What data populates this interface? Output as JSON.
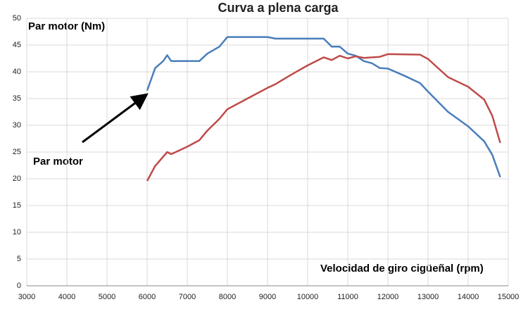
{
  "chart_data": {
    "type": "line",
    "title": "Curva a plena carga",
    "y_label": "Par motor (Nm)",
    "x_label": "Velocidad de giro cigüeñal (rpm)",
    "annotation": "Par motor",
    "series": [
      {
        "color": "#4a7ebb",
        "x": [
          6000,
          6200,
          6400,
          6500,
          6600,
          7300,
          7500,
          7800,
          8000,
          9000,
          9200,
          10400,
          10600,
          10800,
          11000,
          11200,
          11400,
          11600,
          11800,
          12000,
          12400,
          12800,
          13000,
          13500,
          14000,
          14400,
          14600,
          14800
        ],
        "values": [
          36.5,
          40.7,
          42,
          43.1,
          42,
          42,
          43.4,
          44.7,
          46.5,
          46.5,
          46.2,
          46.2,
          44.7,
          44.7,
          43.4,
          43,
          42,
          41.6,
          40.7,
          40.6,
          39.3,
          37.9,
          36.3,
          32.5,
          29.8,
          27,
          24.5,
          20.3
        ]
      },
      {
        "color": "#be4b48",
        "x": [
          6000,
          6200,
          6500,
          6600,
          7000,
          7300,
          7500,
          7800,
          8000,
          8500,
          9000,
          9200,
          9600,
          10000,
          10400,
          10600,
          10800,
          11000,
          11200,
          11400,
          11800,
          12000,
          12800,
          13000,
          13500,
          14000,
          14400,
          14600,
          14800
        ],
        "values": [
          19.6,
          22.4,
          25,
          24.6,
          26,
          27.2,
          29,
          31.2,
          33,
          35,
          37,
          37.7,
          39.5,
          41.2,
          42.7,
          42.2,
          43,
          42.5,
          42.9,
          42.6,
          42.8,
          43.3,
          43.2,
          42.4,
          39,
          37.2,
          34.8,
          31.8,
          26.7
        ]
      }
    ],
    "xlim": [
      3000,
      15000
    ],
    "xticks": [
      3000,
      4000,
      5000,
      6000,
      7000,
      8000,
      9000,
      10000,
      11000,
      12000,
      13000,
      14000,
      15000
    ],
    "ylim": [
      0,
      50
    ],
    "yticks": [
      0,
      5,
      10,
      15,
      20,
      25,
      30,
      35,
      40,
      45,
      50
    ],
    "grid": true
  }
}
